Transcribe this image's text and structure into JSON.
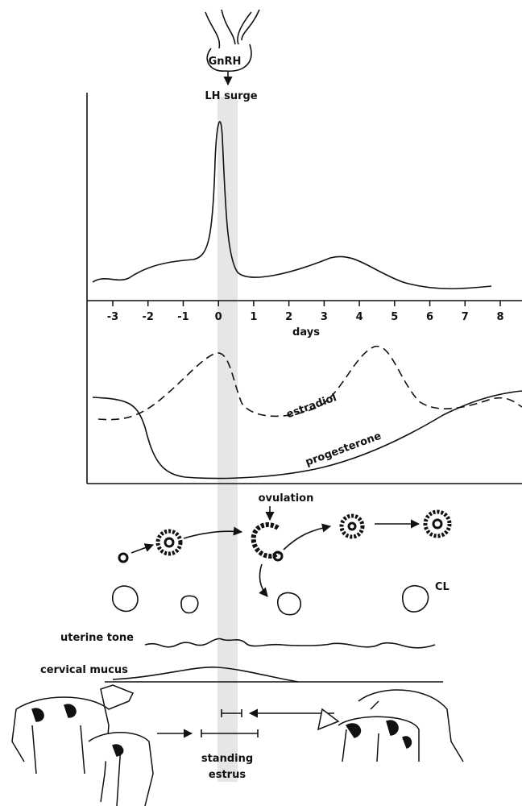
{
  "labels": {
    "gnrh": "GnRH",
    "lh_surge": "LH surge",
    "estradiol": "estradiol",
    "progesterone": "progesterone",
    "ovulation": "ovulation",
    "cl": "CL",
    "uterine_tone": "uterine tone",
    "cervical_mucus": "cervical mucus",
    "standing": "standing",
    "estrus": "estrus"
  },
  "axis": {
    "label": "days",
    "ticks": [
      -3,
      -2,
      -1,
      0,
      1,
      2,
      3,
      4,
      5,
      6,
      7,
      8
    ]
  }
}
